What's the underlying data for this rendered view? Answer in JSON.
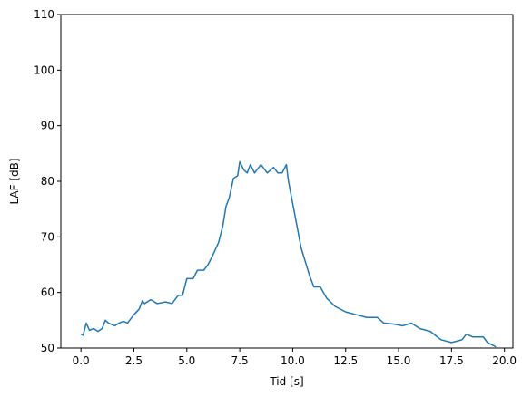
{
  "chart_data": {
    "type": "line",
    "xlabel": "Tid [s]",
    "ylabel": "LAF [dB]",
    "series": [
      {
        "color": "#1f77b4",
        "x": [
          0,
          0.1,
          0.25,
          0.4,
          0.6,
          0.8,
          1.0,
          1.15,
          1.3,
          1.6,
          1.8,
          2.0,
          2.2,
          2.5,
          2.75,
          2.9,
          3.0,
          3.3,
          3.6,
          4.0,
          4.3,
          4.6,
          4.8,
          5.0,
          5.3,
          5.5,
          5.8,
          6.0,
          6.2,
          6.5,
          6.7,
          6.85,
          7.0,
          7.2,
          7.4,
          7.5,
          7.7,
          7.85,
          8.0,
          8.2,
          8.5,
          8.8,
          9.1,
          9.3,
          9.5,
          9.7,
          9.8,
          10.0,
          10.2,
          10.4,
          10.6,
          10.8,
          11.0,
          11.3,
          11.6,
          12.0,
          12.5,
          13.0,
          13.5,
          14.0,
          14.3,
          14.8,
          15.2,
          15.6,
          16.0,
          16.5,
          17.0,
          17.5,
          18.0,
          18.2,
          18.5,
          19.0,
          19.2,
          19.6
        ],
        "values": [
          52.5,
          52.3,
          54.5,
          53.2,
          53.5,
          53.0,
          53.5,
          55.0,
          54.5,
          54.0,
          54.5,
          54.8,
          54.5,
          56.0,
          57.0,
          58.5,
          58.0,
          58.7,
          58.0,
          58.3,
          58.0,
          59.5,
          59.5,
          62.5,
          62.5,
          64.0,
          64.0,
          65.0,
          66.5,
          69.0,
          72.0,
          75.5,
          77.0,
          80.5,
          81.0,
          83.5,
          82.0,
          81.5,
          83.0,
          81.5,
          83.0,
          81.5,
          82.5,
          81.5,
          81.5,
          83.0,
          80.0,
          76.0,
          72.0,
          68.0,
          65.5,
          63.0,
          61.0,
          61.0,
          59.0,
          57.5,
          56.5,
          56.0,
          55.5,
          55.5,
          54.5,
          54.3,
          54.0,
          54.5,
          53.5,
          53.0,
          51.5,
          51.0,
          51.5,
          52.5,
          52.0,
          52.0,
          51.0,
          50.2
        ]
      }
    ],
    "xlim": [
      -0.95,
      20.4
    ],
    "ylim": [
      50,
      110
    ],
    "xticks": [
      {
        "value": 0,
        "label": "0.0"
      },
      2.5,
      {
        "value": 5,
        "label": "5.0"
      },
      7.5,
      {
        "value": 10,
        "label": "10.0"
      },
      12.5,
      {
        "value": 15,
        "label": "15.0"
      },
      17.5,
      {
        "value": 20,
        "label": "20.0"
      }
    ],
    "yticks": [
      50,
      60,
      70,
      80,
      90,
      100,
      110
    ]
  }
}
